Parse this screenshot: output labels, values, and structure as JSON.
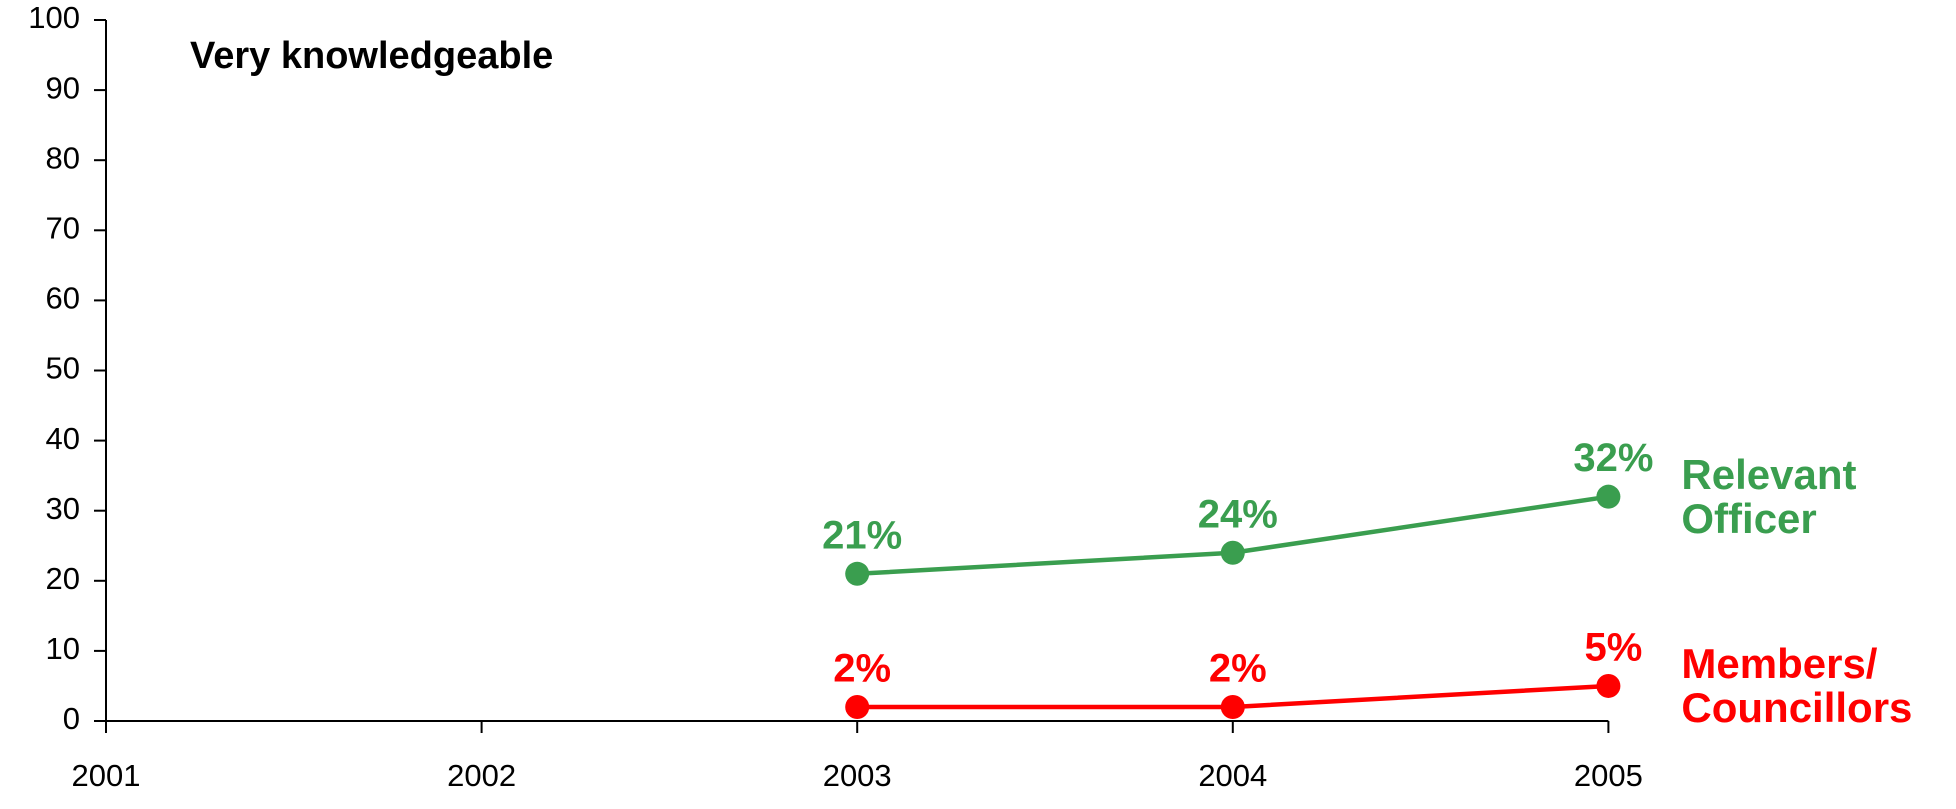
{
  "chart_data": {
    "type": "line",
    "title": "Very knowledgeable",
    "categories": [
      "2001",
      "2002",
      "2003",
      "2004",
      "2005"
    ],
    "series": [
      {
        "name": "Relevant Officer",
        "color": "#3a9e4f",
        "values": [
          null,
          null,
          21,
          24,
          32
        ],
        "value_labels": [
          null,
          null,
          "21%",
          "24%",
          "32%"
        ]
      },
      {
        "name": "Members/ Councillors",
        "color": "#ff0000",
        "values": [
          null,
          null,
          2,
          2,
          5
        ],
        "value_labels": [
          null,
          null,
          "2%",
          "2%",
          "5%"
        ]
      }
    ],
    "ylim": [
      0,
      100
    ],
    "yticks": [
      0,
      10,
      20,
      30,
      40,
      50,
      60,
      70,
      80,
      90,
      100
    ],
    "grid": false
  }
}
